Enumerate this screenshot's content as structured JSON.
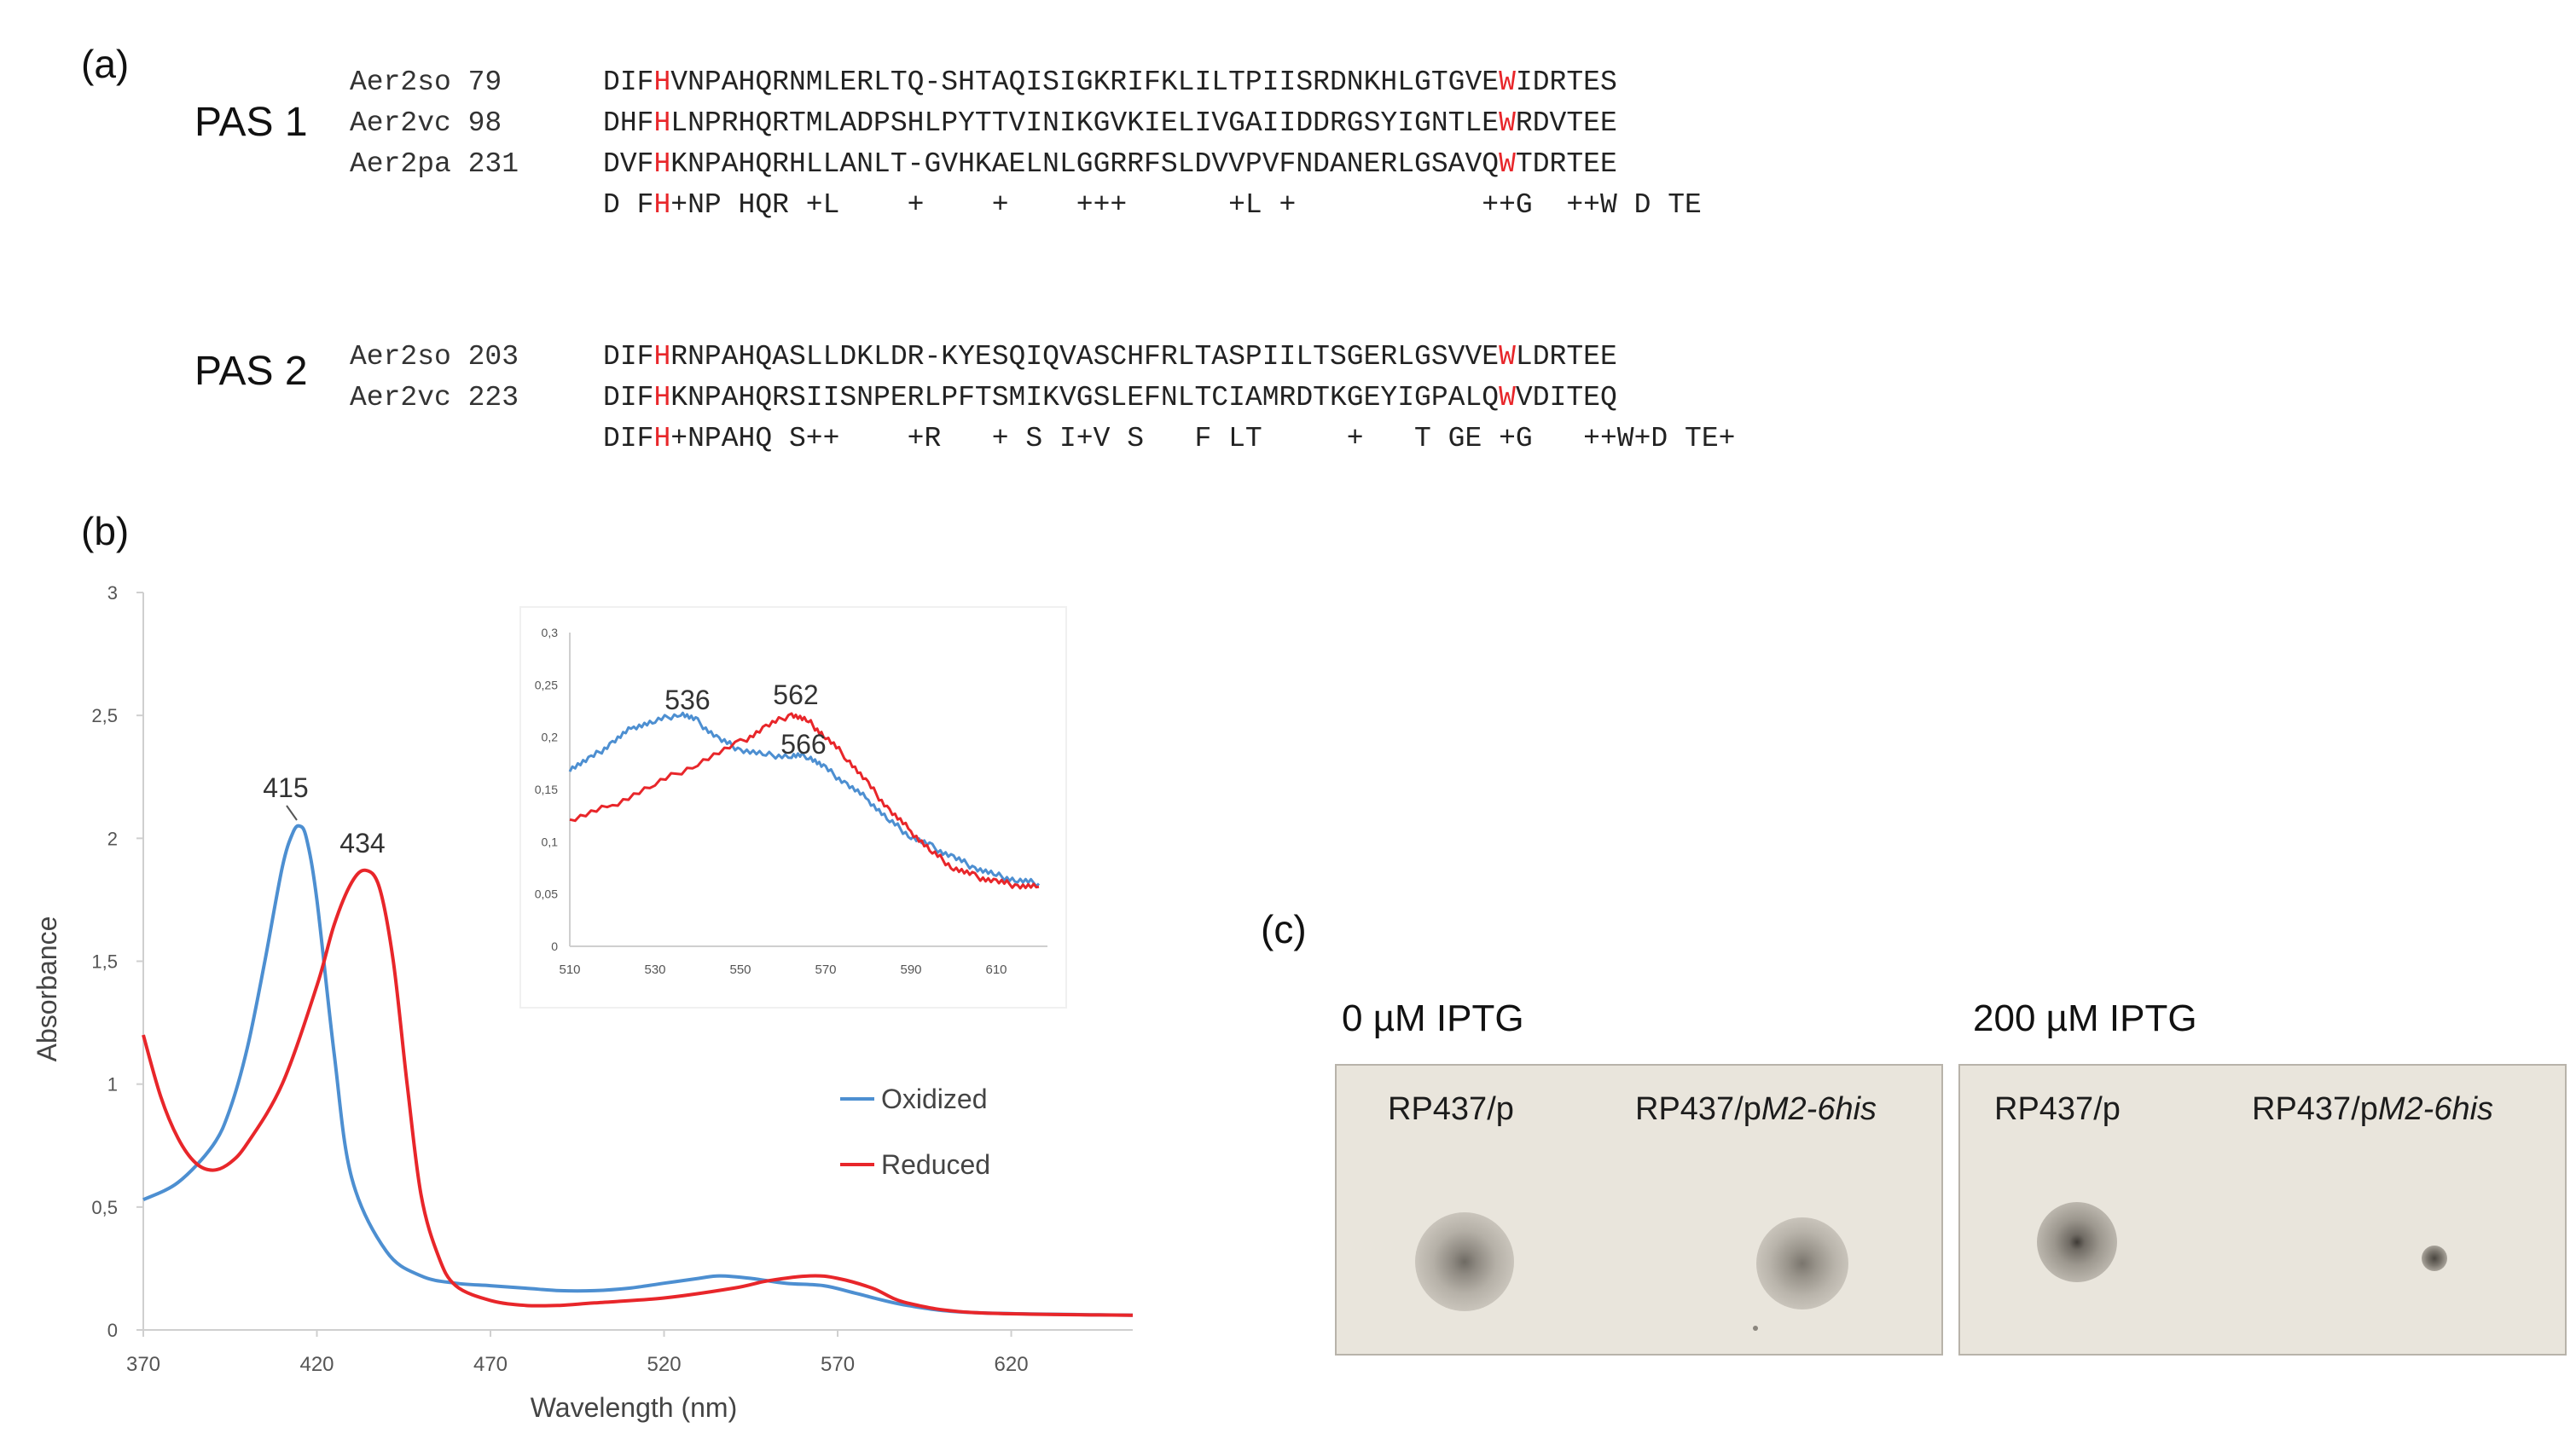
{
  "panels": {
    "a": "(a)",
    "b": "(b)",
    "c": "(c)"
  },
  "alignment": {
    "pas1": {
      "title": "PAS 1",
      "rows": [
        {
          "name": "Aer2so 79",
          "seq": "DIFHVNPAHQRNMLERLTQ-SHTAQISIGKRIFKLILTPIISRDNKHLGTGVEWIDRTES"
        },
        {
          "name": "Aer2vc 98",
          "seq": "DHFHLNPRHQRTMLADPSHLPYTTVINIKGVKIELIVGAIIDDRGSYIGNTLEWRDVTEE"
        },
        {
          "name": "Aer2pa 231",
          "seq": "DVFHKNPAHQRHLLANLT-GVHKAELNLGGRRFSLDVVPVFNDANERLGSAVQWTDRTEE"
        }
      ],
      "consensus": "D FH+NP HQR +L    +    +    +++      +L +           ++G  ++W D TE"
    },
    "pas2": {
      "title": "PAS 2",
      "rows": [
        {
          "name": "Aer2so 203",
          "seq": "DIFHRNPAHQASLLDKLDR-KYESQIQVASCHFRLTASPIILTSGERLGSVVEWLDRTEE"
        },
        {
          "name": "Aer2vc 223",
          "seq": "DIFHKNPAHQRSIISNPERLPFTSMIKVGSLEFNLTCIAMRDTKGEYIGPALQWVDITEQ"
        }
      ],
      "consensus": "DIFH+NPAHQ S++    +R   + S I+V S   F LT     +   T GE +G   ++W+D TE+"
    }
  },
  "chart_data": {
    "type": "line",
    "xlabel": "Wavelength (nm)",
    "ylabel": "Absorbance",
    "xlim": [
      370,
      655
    ],
    "ylim": [
      0,
      3
    ],
    "xticks": [
      "370",
      "420",
      "470",
      "520",
      "570",
      "620"
    ],
    "yticks": [
      "0",
      "0,5",
      "1",
      "1,5",
      "2",
      "2,5",
      "3"
    ],
    "legend": [
      "Oxidized",
      "Reduced"
    ],
    "series": [
      {
        "name": "Oxidized",
        "color": "#4d8fd1",
        "x": [
          370,
          380,
          390,
          395,
          400,
          405,
          410,
          413,
          415,
          417,
          420,
          425,
          430,
          440,
          450,
          460,
          470,
          480,
          490,
          500,
          510,
          520,
          530,
          536,
          545,
          555,
          566,
          575,
          590,
          610,
          655
        ],
        "y": [
          0.53,
          0.6,
          0.75,
          0.9,
          1.15,
          1.5,
          1.88,
          2.02,
          2.05,
          2.0,
          1.75,
          1.12,
          0.62,
          0.32,
          0.22,
          0.19,
          0.18,
          0.17,
          0.16,
          0.16,
          0.17,
          0.19,
          0.21,
          0.22,
          0.21,
          0.19,
          0.18,
          0.15,
          0.1,
          0.07,
          0.06
        ]
      },
      {
        "name": "Reduced",
        "color": "#e8262a",
        "x": [
          370,
          375,
          380,
          385,
          390,
          395,
          400,
          410,
          420,
          425,
          430,
          434,
          438,
          442,
          446,
          450,
          455,
          460,
          470,
          480,
          490,
          500,
          520,
          540,
          550,
          562,
          570,
          580,
          590,
          610,
          655
        ],
        "y": [
          1.2,
          0.95,
          0.78,
          0.68,
          0.65,
          0.68,
          0.76,
          1.0,
          1.4,
          1.65,
          1.82,
          1.87,
          1.8,
          1.5,
          1.0,
          0.55,
          0.3,
          0.18,
          0.12,
          0.1,
          0.1,
          0.11,
          0.13,
          0.17,
          0.2,
          0.22,
          0.21,
          0.17,
          0.11,
          0.07,
          0.06
        ]
      }
    ],
    "annotations": [
      "415",
      "434"
    ],
    "inset": {
      "xlim": [
        510,
        622
      ],
      "ylim": [
        0,
        0.3
      ],
      "xticks": [
        "510",
        "530",
        "550",
        "570",
        "590",
        "610"
      ],
      "yticks": [
        "0",
        "0,05",
        "0,1",
        "0,15",
        "0,2",
        "0,25",
        "0,3"
      ],
      "annotations": [
        "536",
        "562",
        "566"
      ],
      "series": [
        {
          "name": "Oxidized",
          "x": [
            510,
            515,
            520,
            525,
            530,
            536,
            540,
            545,
            550,
            556,
            562,
            566,
            570,
            575,
            580,
            585,
            590,
            595,
            600,
            605,
            610,
            615,
            620
          ],
          "y": [
            0.17,
            0.18,
            0.195,
            0.21,
            0.215,
            0.223,
            0.215,
            0.198,
            0.188,
            0.183,
            0.182,
            0.182,
            0.17,
            0.155,
            0.14,
            0.12,
            0.105,
            0.095,
            0.085,
            0.075,
            0.068,
            0.063,
            0.06
          ]
        },
        {
          "name": "Reduced",
          "x": [
            510,
            520,
            530,
            540,
            550,
            556,
            562,
            566,
            570,
            575,
            580,
            585,
            590,
            595,
            600,
            605,
            610,
            615,
            620
          ],
          "y": [
            0.12,
            0.135,
            0.155,
            0.175,
            0.195,
            0.21,
            0.222,
            0.215,
            0.2,
            0.18,
            0.155,
            0.13,
            0.11,
            0.09,
            0.075,
            0.067,
            0.062,
            0.058,
            0.057
          ]
        }
      ]
    }
  },
  "plates": {
    "conditions": [
      "0 µM IPTG",
      "200 µM IPTG"
    ],
    "strain_prefix": "RP437/p",
    "strain2_plasmid": "M2-6his"
  }
}
